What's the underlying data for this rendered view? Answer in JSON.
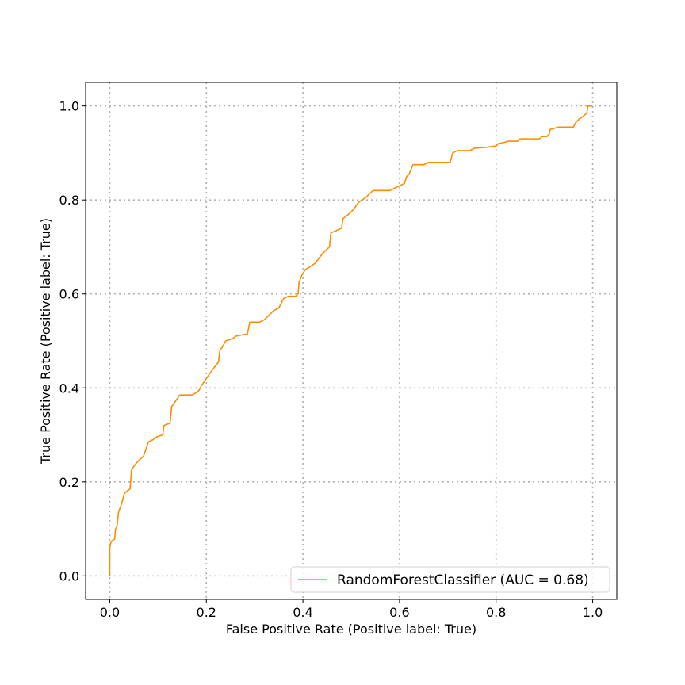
{
  "chart_data": {
    "type": "line",
    "title": "",
    "xlabel": "False Positive Rate (Positive label: True)",
    "ylabel": "True Positive Rate (Positive label: True)",
    "xlim": [
      -0.05,
      1.05
    ],
    "ylim": [
      -0.05,
      1.05
    ],
    "grid": true,
    "legend_position": "lower-right",
    "x_ticks": [
      0.0,
      0.2,
      0.4,
      0.6,
      0.8,
      1.0
    ],
    "y_ticks": [
      0.0,
      0.2,
      0.4,
      0.6,
      0.8,
      1.0
    ],
    "x_tick_labels": [
      "0.0",
      "0.2",
      "0.4",
      "0.6",
      "0.8",
      "1.0"
    ],
    "y_tick_labels": [
      "0.0",
      "0.2",
      "0.4",
      "0.6",
      "0.8",
      "1.0"
    ],
    "series": [
      {
        "name": "RandomForestClassifier (AUC = 0.68)",
        "color": "#ff8c00",
        "points": [
          [
            0.0,
            0.0
          ],
          [
            0.0,
            0.06
          ],
          [
            0.002,
            0.07
          ],
          [
            0.005,
            0.075
          ],
          [
            0.01,
            0.078
          ],
          [
            0.012,
            0.1
          ],
          [
            0.015,
            0.105
          ],
          [
            0.018,
            0.135
          ],
          [
            0.025,
            0.155
          ],
          [
            0.03,
            0.175
          ],
          [
            0.035,
            0.18
          ],
          [
            0.042,
            0.185
          ],
          [
            0.045,
            0.225
          ],
          [
            0.048,
            0.23
          ],
          [
            0.055,
            0.24
          ],
          [
            0.07,
            0.255
          ],
          [
            0.08,
            0.285
          ],
          [
            0.09,
            0.29
          ],
          [
            0.095,
            0.295
          ],
          [
            0.11,
            0.3
          ],
          [
            0.112,
            0.32
          ],
          [
            0.125,
            0.325
          ],
          [
            0.128,
            0.36
          ],
          [
            0.135,
            0.37
          ],
          [
            0.145,
            0.385
          ],
          [
            0.17,
            0.385
          ],
          [
            0.18,
            0.39
          ],
          [
            0.185,
            0.395
          ],
          [
            0.19,
            0.405
          ],
          [
            0.2,
            0.42
          ],
          [
            0.21,
            0.435
          ],
          [
            0.225,
            0.455
          ],
          [
            0.228,
            0.48
          ],
          [
            0.232,
            0.485
          ],
          [
            0.24,
            0.5
          ],
          [
            0.255,
            0.505
          ],
          [
            0.26,
            0.51
          ],
          [
            0.285,
            0.515
          ],
          [
            0.29,
            0.54
          ],
          [
            0.31,
            0.54
          ],
          [
            0.32,
            0.545
          ],
          [
            0.33,
            0.555
          ],
          [
            0.34,
            0.565
          ],
          [
            0.35,
            0.57
          ],
          [
            0.36,
            0.59
          ],
          [
            0.37,
            0.595
          ],
          [
            0.385,
            0.595
          ],
          [
            0.39,
            0.6
          ],
          [
            0.392,
            0.625
          ],
          [
            0.398,
            0.64
          ],
          [
            0.405,
            0.652
          ],
          [
            0.415,
            0.658
          ],
          [
            0.425,
            0.665
          ],
          [
            0.44,
            0.685
          ],
          [
            0.455,
            0.7
          ],
          [
            0.458,
            0.73
          ],
          [
            0.47,
            0.735
          ],
          [
            0.48,
            0.74
          ],
          [
            0.483,
            0.76
          ],
          [
            0.495,
            0.77
          ],
          [
            0.505,
            0.78
          ],
          [
            0.515,
            0.795
          ],
          [
            0.53,
            0.805
          ],
          [
            0.545,
            0.82
          ],
          [
            0.58,
            0.82
          ],
          [
            0.6,
            0.83
          ],
          [
            0.61,
            0.835
          ],
          [
            0.615,
            0.85
          ],
          [
            0.62,
            0.855
          ],
          [
            0.628,
            0.875
          ],
          [
            0.65,
            0.875
          ],
          [
            0.66,
            0.88
          ],
          [
            0.705,
            0.88
          ],
          [
            0.71,
            0.9
          ],
          [
            0.72,
            0.905
          ],
          [
            0.745,
            0.905
          ],
          [
            0.755,
            0.91
          ],
          [
            0.78,
            0.912
          ],
          [
            0.8,
            0.915
          ],
          [
            0.805,
            0.92
          ],
          [
            0.815,
            0.922
          ],
          [
            0.825,
            0.925
          ],
          [
            0.845,
            0.925
          ],
          [
            0.85,
            0.93
          ],
          [
            0.89,
            0.93
          ],
          [
            0.895,
            0.935
          ],
          [
            0.905,
            0.935
          ],
          [
            0.91,
            0.94
          ],
          [
            0.912,
            0.95
          ],
          [
            0.93,
            0.955
          ],
          [
            0.96,
            0.955
          ],
          [
            0.965,
            0.965
          ],
          [
            0.972,
            0.972
          ],
          [
            0.98,
            0.978
          ],
          [
            0.988,
            0.985
          ],
          [
            0.99,
            1.0
          ],
          [
            1.0,
            1.0
          ]
        ]
      }
    ]
  }
}
